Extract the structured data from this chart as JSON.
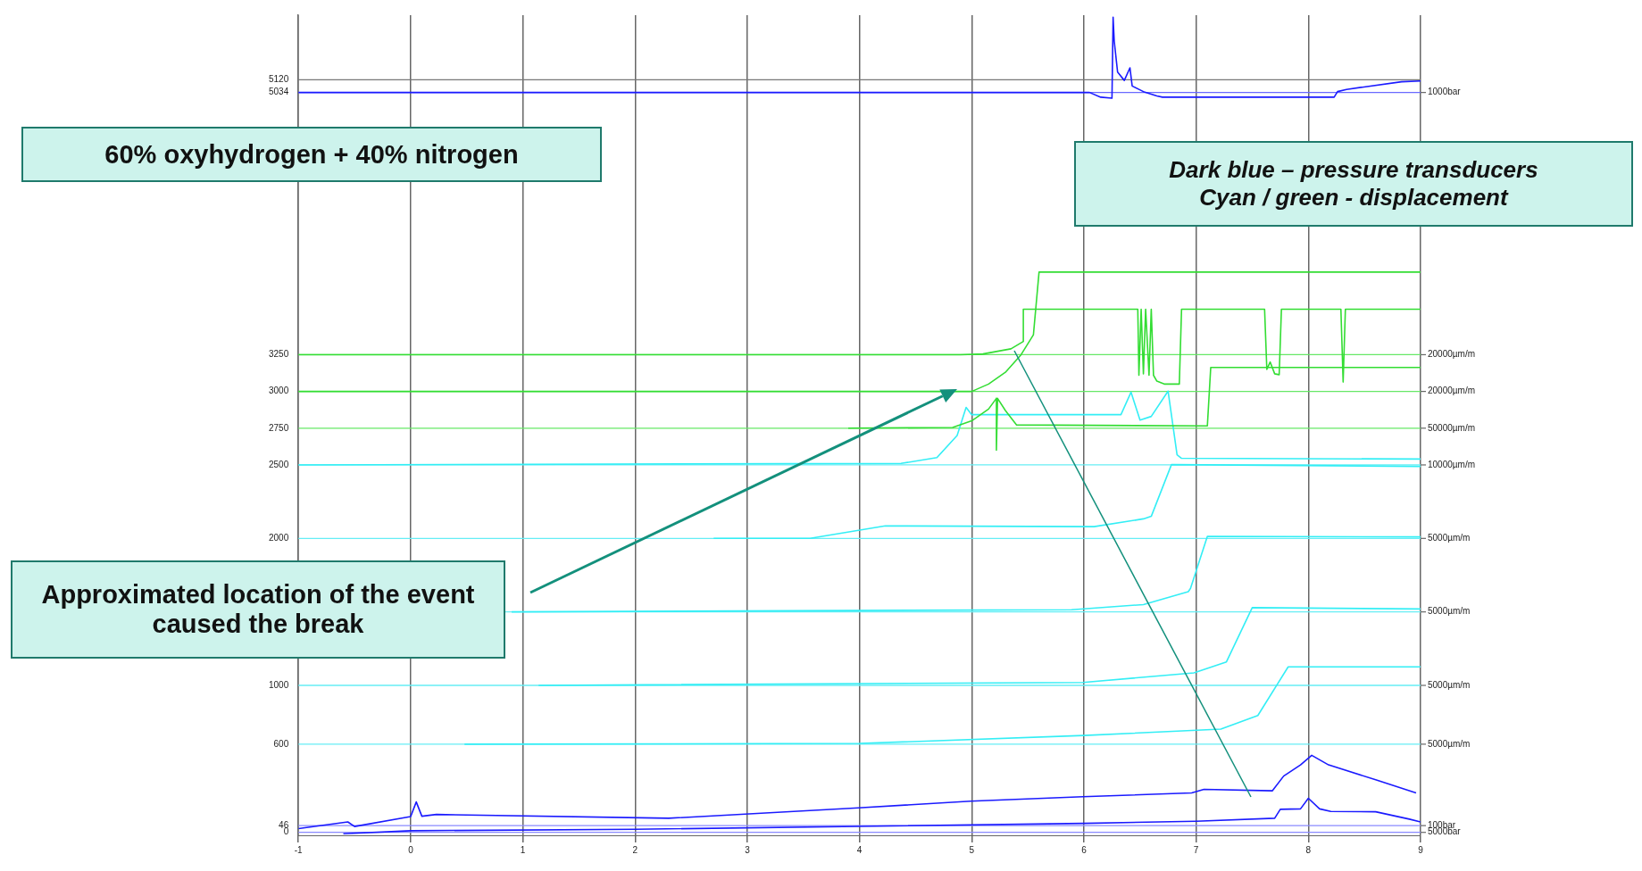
{
  "chart_data": {
    "type": "line",
    "xlim": [
      -1,
      9
    ],
    "xticks": [
      -1,
      0,
      1,
      2,
      3,
      4,
      5,
      6,
      7,
      8,
      9
    ],
    "ylim": [
      -20,
      5560
    ],
    "yticks": [
      0,
      46,
      600,
      1000,
      2000,
      2500,
      2750,
      3000,
      3250,
      5034,
      5120
    ],
    "grid": "x",
    "legend": false,
    "marker": "none",
    "line_style": "solid",
    "series": [
      {
        "color": "#1a1aff",
        "x": [
          -1,
          6.05,
          6.15,
          6.25,
          6.26,
          6.27,
          6.3,
          6.36,
          6.41,
          6.43,
          6.53,
          6.65,
          6.7,
          8.23,
          8.26,
          8.34,
          8.83,
          9
        ],
        "values": [
          5034,
          5034,
          5002,
          4995,
          5546,
          5384,
          5173,
          5116,
          5202,
          5078,
          5040,
          5011,
          5002,
          5002,
          5040,
          5055,
          5107,
          5112
        ]
      },
      {
        "color": "#33dd33",
        "x": [
          -1,
          4.9,
          5.1,
          5.35,
          5.46,
          5.46,
          6.48,
          6.49,
          6.51,
          6.53,
          6.55,
          6.58,
          6.6,
          6.62,
          6.65,
          6.72,
          6.85,
          6.87,
          7.61,
          7.63,
          7.66,
          7.7,
          7.74,
          7.76,
          8.29,
          8.31,
          8.33,
          9
        ],
        "values": [
          3250,
          3250,
          3255,
          3290,
          3340,
          3559,
          3559,
          3110,
          3559,
          3120,
          3559,
          3110,
          3559,
          3110,
          3070,
          3050,
          3050,
          3559,
          3559,
          3150,
          3200,
          3120,
          3114,
          3559,
          3559,
          3064,
          3559,
          3559
        ]
      },
      {
        "color": "#33dd33",
        "x": [
          -1,
          5.0,
          5.15,
          5.3,
          5.44,
          5.55,
          5.6,
          9
        ],
        "values": [
          3000,
          3000,
          3050,
          3130,
          3250,
          3386,
          3812,
          3812
        ]
      },
      {
        "color": "#33dd33",
        "x": [
          3.9,
          4.83,
          5.0,
          5.15,
          5.22,
          5.22,
          5.23,
          5.3,
          5.4,
          7.1,
          7.13,
          9
        ],
        "values": [
          2750,
          2755,
          2800,
          2880,
          2953,
          2600,
          2953,
          2870,
          2772,
          2765,
          3163,
          3163
        ]
      },
      {
        "color": "#33eef5",
        "x": [
          -1,
          4.37,
          4.69,
          4.87,
          4.95,
          5.0,
          6.33,
          6.42,
          6.5,
          6.6,
          6.75,
          6.83,
          6.87,
          9
        ],
        "values": [
          2500,
          2510,
          2550,
          2700,
          2891,
          2842,
          2842,
          2995,
          2805,
          2830,
          3002,
          2569,
          2545,
          2540
        ]
      },
      {
        "color": "#33eef5",
        "x": [
          2.7,
          3.56,
          4.23,
          6.09,
          6.53,
          6.6,
          6.78,
          9
        ],
        "values": [
          2000,
          2000,
          2085,
          2080,
          2133,
          2150,
          2502,
          2490
        ]
      },
      {
        "color": "#33eef5",
        "x": [
          0.9,
          5.89,
          6.53,
          6.93,
          6.95,
          7.1,
          9
        ],
        "values": [
          1500,
          1515,
          1550,
          1638,
          1660,
          2014,
          2010
        ]
      },
      {
        "color": "#33eef5",
        "x": [
          1.14,
          5.99,
          6.98,
          7.27,
          7.5,
          9
        ],
        "values": [
          1000,
          1020,
          1085,
          1160,
          1529,
          1520
        ]
      },
      {
        "color": "#33eef5",
        "x": [
          0.48,
          4.0,
          6.0,
          7.22,
          7.55,
          7.82,
          9
        ],
        "values": [
          600,
          605,
          659,
          703,
          795,
          1126,
          1126
        ]
      },
      {
        "color": "#1a1aff",
        "x": [
          -1,
          -0.56,
          -0.5,
          0,
          0.05,
          0.1,
          0.23,
          2.3,
          3.99,
          4.99,
          5.99,
          6.96,
          7.07,
          7.68,
          7.78,
          7.93,
          8.03,
          8.18,
          8.6,
          8.96
        ],
        "values": [
          26,
          71,
          40,
          107,
          207,
          110,
          122,
          96,
          167,
          212,
          243,
          268,
          293,
          283,
          383,
          459,
          524,
          459,
          358,
          268
        ]
      },
      {
        "color": "#1a1aff",
        "x": [
          -0.6,
          0,
          2,
          4,
          6,
          7,
          7.7,
          7.75,
          7.93,
          8.0,
          8.1,
          8.2,
          8.6,
          8.9,
          9
        ],
        "values": [
          -9,
          11,
          21,
          41,
          61,
          76,
          96,
          157,
          160,
          232,
          160,
          142,
          140,
          90,
          71
        ]
      }
    ],
    "ref_lines": [
      {
        "axis": "y",
        "value": 5120,
        "color": "#777777"
      },
      {
        "axis": "y",
        "value": 5034,
        "color": "#6a6aff",
        "label": "1000bar"
      },
      {
        "axis": "y",
        "value": 3250,
        "color": "#66e866",
        "label": "20000µm/m"
      },
      {
        "axis": "y",
        "value": 3000,
        "color": "#66e866",
        "label": "20000µm/m"
      },
      {
        "axis": "y",
        "value": 2750,
        "color": "#66e866",
        "label": "50000µm/m"
      },
      {
        "axis": "y",
        "value": 2500,
        "color": "#66eef5",
        "label": "10000µm/m"
      },
      {
        "axis": "y",
        "value": 2000,
        "color": "#66eef5",
        "label": "5000µm/m"
      },
      {
        "axis": "y",
        "value": 1500,
        "color": "#66eef5",
        "label": "5000µm/m"
      },
      {
        "axis": "y",
        "value": 1000,
        "color": "#66eef5",
        "label": "5000µm/m"
      },
      {
        "axis": "y",
        "value": 600,
        "color": "#66eef5",
        "label": "5000µm/m"
      },
      {
        "axis": "y",
        "value": 46,
        "color": "#8a8aff",
        "label": "100bar"
      },
      {
        "axis": "y",
        "value": 0,
        "color": "#8a8aff",
        "label": "5000bar"
      }
    ],
    "annotations": [
      "60% oxyhydrogen + 40% nitrogen",
      "Dark blue – pressure transducers\nCyan / green - displacement",
      "Approximated location of the event caused the break"
    ]
  }
}
